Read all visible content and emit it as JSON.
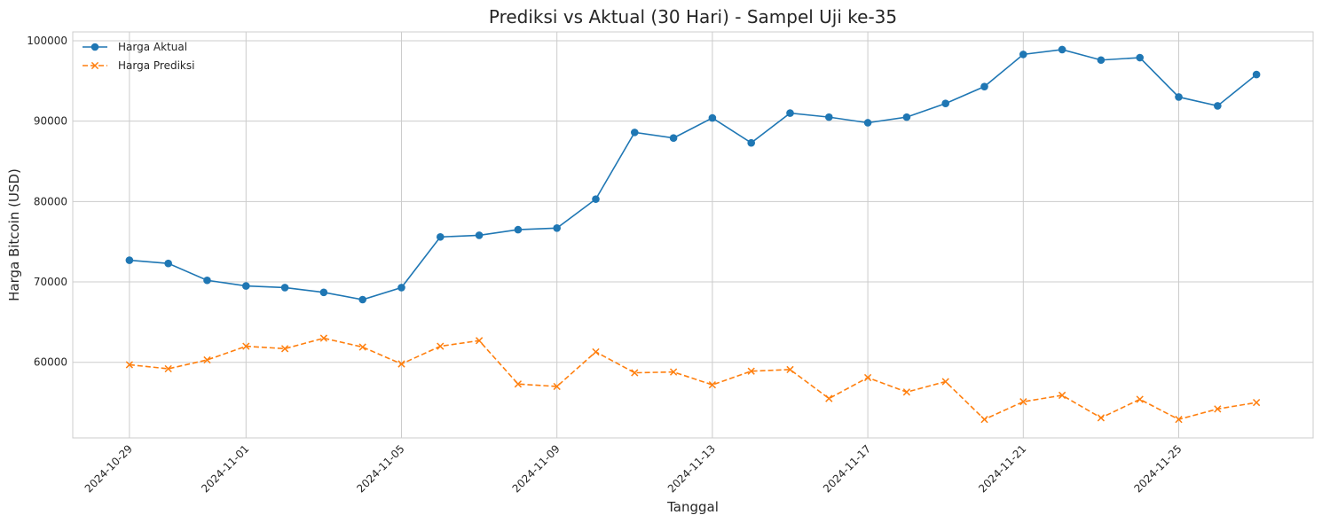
{
  "chart_data": {
    "type": "line",
    "title": "Prediksi vs Aktual (30 Hari) - Sampel Uji ke-35",
    "xlabel": "Tanggal",
    "ylabel": "Harga Bitcoin (USD)",
    "x": [
      "2024-10-29",
      "2024-10-30",
      "2024-10-31",
      "2024-11-01",
      "2024-11-02",
      "2024-11-03",
      "2024-11-04",
      "2024-11-05",
      "2024-11-06",
      "2024-11-07",
      "2024-11-08",
      "2024-11-09",
      "2024-11-10",
      "2024-11-11",
      "2024-11-12",
      "2024-11-13",
      "2024-11-14",
      "2024-11-15",
      "2024-11-16",
      "2024-11-17",
      "2024-11-18",
      "2024-11-19",
      "2024-11-20",
      "2024-11-21",
      "2024-11-22",
      "2024-11-23",
      "2024-11-24",
      "2024-11-25",
      "2024-11-26",
      "2024-11-27"
    ],
    "xlim": [
      "2024-10-27T13:00",
      "2024-11-28T11:00"
    ],
    "xticks": [
      "2024-10-29",
      "2024-11-01",
      "2024-11-05",
      "2024-11-09",
      "2024-11-13",
      "2024-11-17",
      "2024-11-21",
      "2024-11-25"
    ],
    "ylim": [
      50600,
      101100
    ],
    "yticks": [
      60000,
      70000,
      80000,
      90000,
      100000
    ],
    "grid": true,
    "legend_position": "top-left",
    "series": [
      {
        "name": "Harga Aktual",
        "color": "#1f77b4",
        "line_style": "solid",
        "marker": "circle",
        "values": [
          72700,
          72300,
          70200,
          69500,
          69300,
          68700,
          67800,
          69300,
          75600,
          75800,
          76500,
          76700,
          80300,
          88600,
          87900,
          90400,
          87300,
          91000,
          90500,
          89800,
          90500,
          92200,
          94300,
          98300,
          98900,
          97600,
          97900,
          93000,
          91900,
          95800
        ]
      },
      {
        "name": "Harga Prediksi",
        "color": "#ff7f0e",
        "line_style": "dashed",
        "marker": "x",
        "values": [
          59700,
          59200,
          60300,
          62000,
          61700,
          63000,
          61900,
          59800,
          62000,
          62700,
          57300,
          57000,
          61300,
          58700,
          58800,
          57200,
          58900,
          59100,
          55500,
          58100,
          56300,
          57600,
          52900,
          55100,
          55900,
          53100,
          55400,
          52900,
          54200,
          55000
        ]
      }
    ]
  }
}
